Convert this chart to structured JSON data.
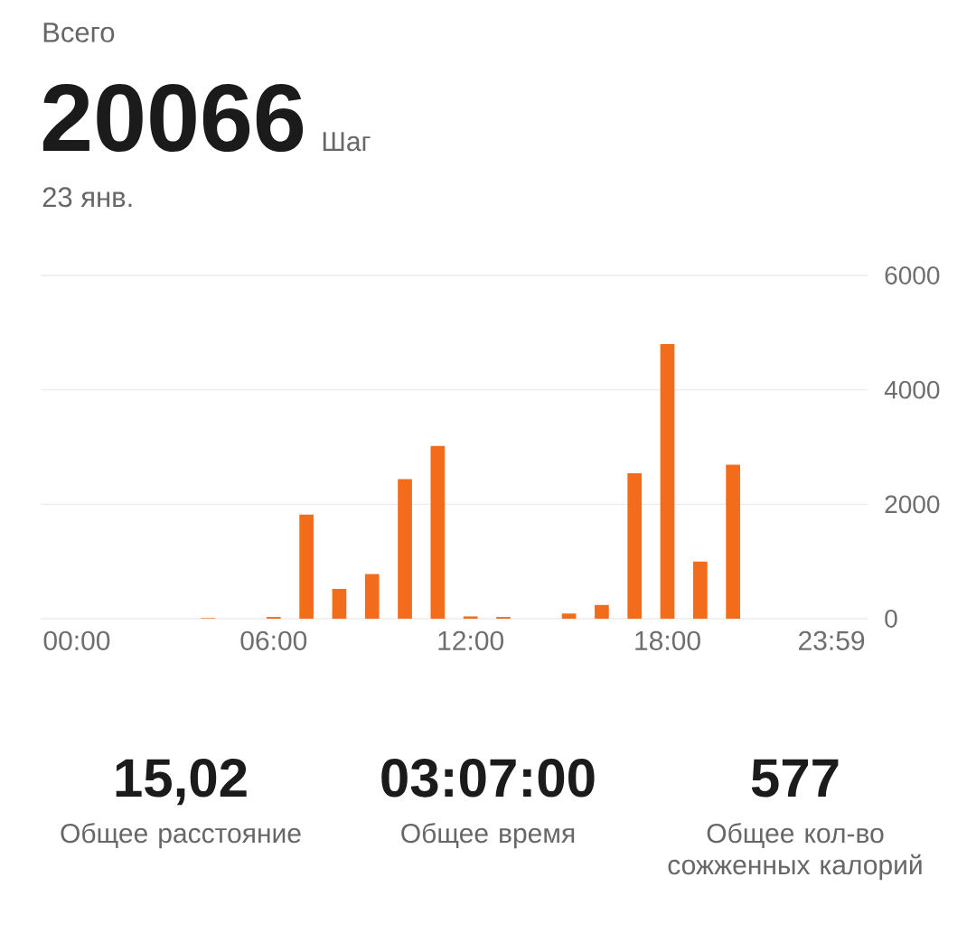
{
  "chart_data": {
    "type": "bar",
    "title": "Всего",
    "subtitle": "23 янв.",
    "annotations": [
      "20066",
      "Шаг",
      "15,02",
      "Общее расстояние",
      "03:07:00",
      "Общее время",
      "577",
      "Общее кол-во сожженных калорий"
    ],
    "categories": [
      "00:00",
      null,
      null,
      null,
      null,
      null,
      "06:00",
      null,
      null,
      null,
      null,
      null,
      "12:00",
      null,
      null,
      null,
      null,
      null,
      "18:00",
      null,
      null,
      null,
      null,
      "23:59"
    ],
    "values": [
      0,
      0,
      0,
      0,
      10,
      0,
      30,
      1820,
      520,
      780,
      2440,
      3020,
      40,
      30,
      0,
      90,
      240,
      2540,
      4800,
      1000,
      2690,
      0,
      0,
      0
    ],
    "color": "#f36c1b",
    "ylim": [
      0,
      6000
    ],
    "yticks": [
      0,
      2000,
      4000,
      6000
    ],
    "grid": "y"
  }
}
